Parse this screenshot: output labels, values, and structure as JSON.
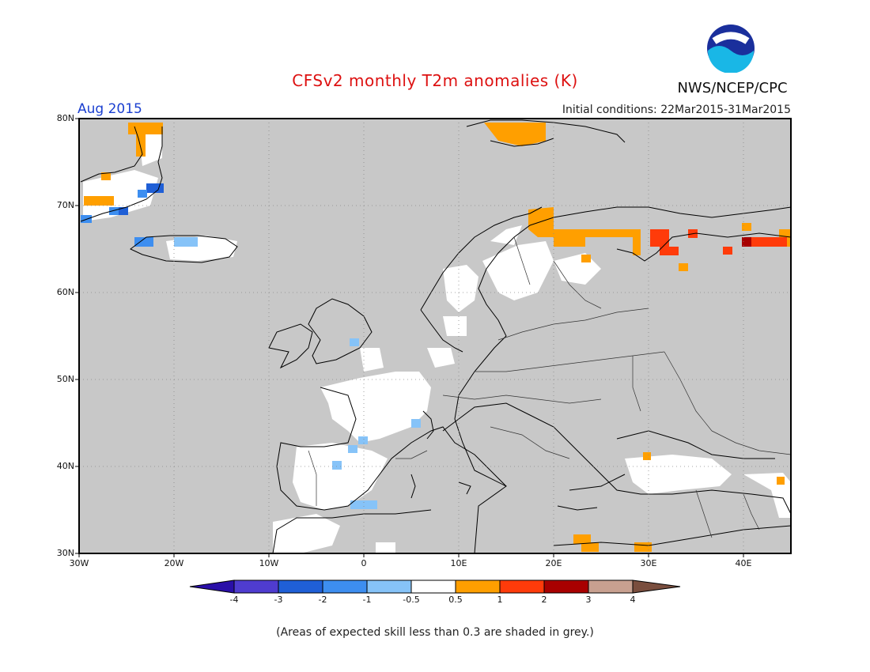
{
  "title": "CFSv2 monthly T2m anomalies (K)",
  "agency": "NWS/NCEP/CPC",
  "logo_text": "NOAA",
  "period": "Aug 2015",
  "initial_conditions": "Initial conditions: 22Mar2015-31Mar2015",
  "footnote": "(Areas of expected skill less than 0.3 are shaded in grey.)",
  "map": {
    "region": "Europe",
    "lon_range": [
      -30,
      45
    ],
    "lat_range": [
      30,
      80
    ],
    "lat_labels": [
      "80N",
      "70N",
      "60N",
      "50N",
      "40N",
      "30N"
    ],
    "lon_labels": [
      "30W",
      "20W",
      "10W",
      "0",
      "10E",
      "20E",
      "30E",
      "40E"
    ],
    "background_color": "#c8c8c8",
    "grid": true
  },
  "colorbar": {
    "labels": [
      "-4",
      "-3",
      "-2",
      "-1",
      "-0.5",
      "0.5",
      "1",
      "2",
      "3",
      "4"
    ],
    "colors": [
      "#2a0fa8",
      "#4f3ccf",
      "#1f5fd6",
      "#3d8ef0",
      "#86c3f8",
      "#ffffff",
      "#ff9f00",
      "#ff3b0a",
      "#a80000",
      "#c8a090",
      "#7a4e3e"
    ]
  },
  "anomaly_regions": [
    {
      "name": "northern-scandinavia-warm",
      "category": "0.5 to 1",
      "color": "#ff9f00"
    },
    {
      "name": "northwest-russia-warm",
      "category": "1 to 2",
      "color": "#ff3b0a"
    },
    {
      "name": "svalbard-warm",
      "category": "0.5 to 1",
      "color": "#ff9f00"
    },
    {
      "name": "greenland-cool",
      "category": "-2 to -1",
      "color": "#3d8ef0"
    },
    {
      "name": "iceland-cool",
      "category": "-1 to -0.5",
      "color": "#86c3f8"
    },
    {
      "name": "western-europe-neutral",
      "category": "-0.5 to 0.5",
      "color": "#ffffff"
    }
  ]
}
